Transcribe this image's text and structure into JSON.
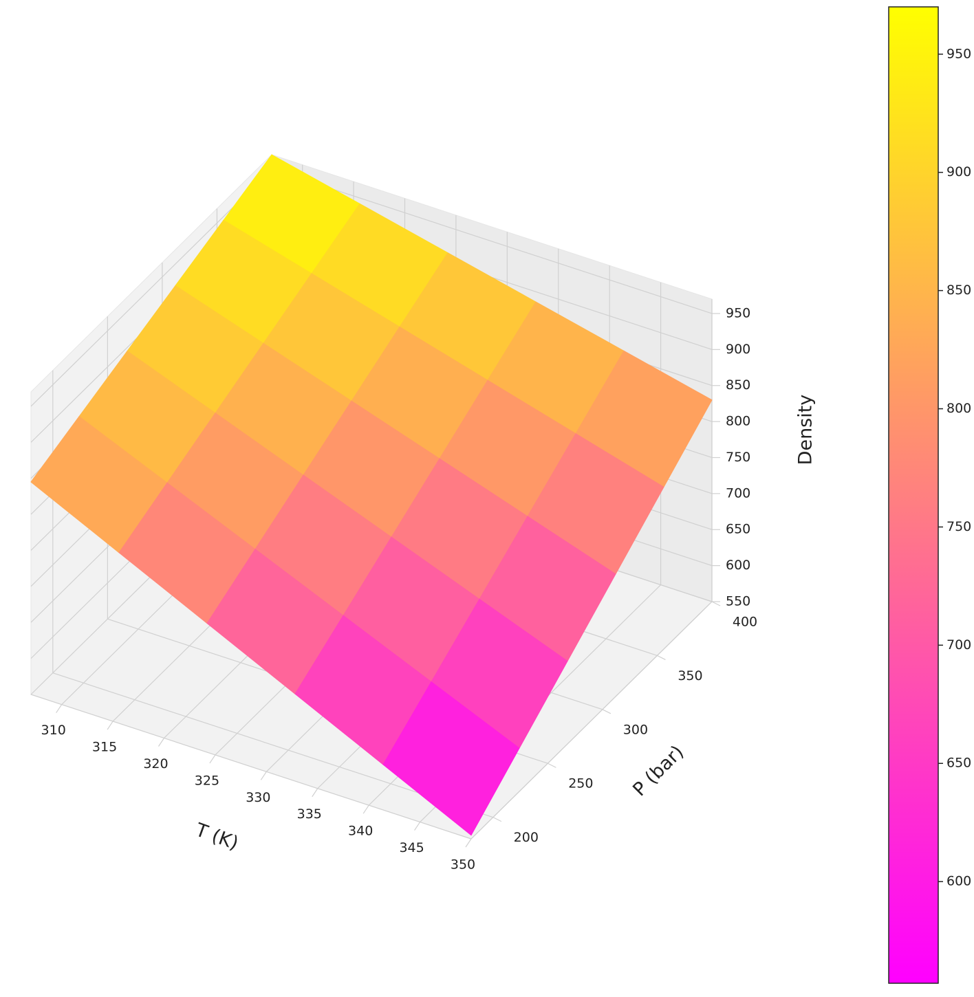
{
  "chart_data": {
    "type": "surface",
    "xlabel": "T (K)",
    "ylabel": "P (bar)",
    "zlabel": "Density",
    "x": [
      307,
      315.6,
      324.2,
      332.8,
      341.4,
      350
    ],
    "y": [
      180,
      224,
      268,
      312,
      356,
      400
    ],
    "z": [
      [
        845,
        870,
        895,
        920,
        945,
        970
      ],
      [
        787,
        818,
        849,
        880,
        911,
        942
      ],
      [
        729,
        766,
        803,
        840,
        877,
        914
      ],
      [
        671,
        714,
        757,
        800,
        843,
        886
      ],
      [
        613,
        662,
        711,
        760,
        809,
        858
      ],
      [
        555,
        610,
        665,
        720,
        775,
        830
      ]
    ],
    "xlim": [
      307,
      350
    ],
    "ylim": [
      180,
      400
    ],
    "zlim": [
      550,
      970
    ],
    "xticks": [
      310,
      315,
      320,
      325,
      330,
      335,
      340,
      345,
      350
    ],
    "yticks": [
      200,
      250,
      300,
      350,
      400
    ],
    "zticks": [
      550,
      600,
      650,
      700,
      750,
      800,
      850,
      900,
      950
    ],
    "colormap": "spring",
    "colorbar": {
      "lim": [
        557,
        970
      ],
      "ticks": [
        600,
        650,
        700,
        750,
        800,
        850,
        900,
        950
      ]
    },
    "grid": true
  }
}
